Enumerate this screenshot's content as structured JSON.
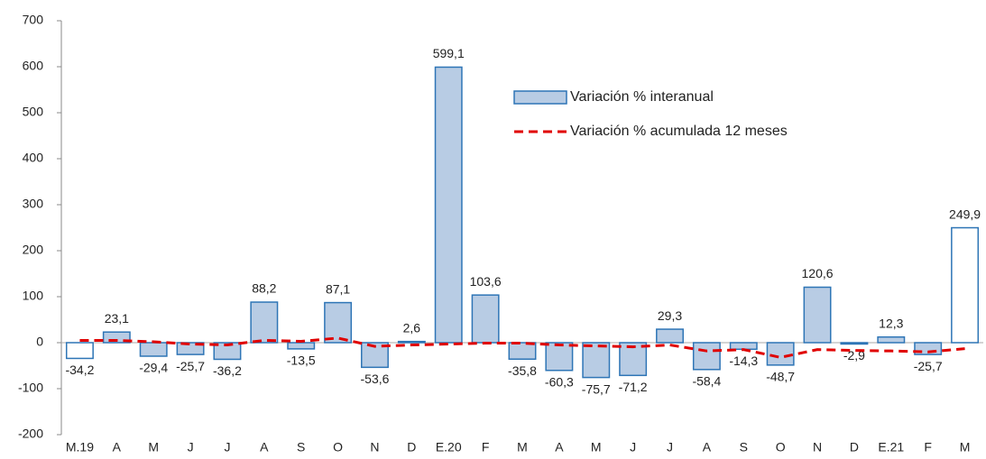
{
  "chart_data": {
    "type": "bar",
    "categories": [
      "M.19",
      "A",
      "M",
      "J",
      "J",
      "A",
      "S",
      "O",
      "N",
      "D",
      "E.20",
      "F",
      "M",
      "A",
      "M",
      "J",
      "J",
      "A",
      "S",
      "O",
      "N",
      "D",
      "E.21",
      "F",
      "M"
    ],
    "series": [
      {
        "name": "Variación % interanual",
        "type": "bar",
        "color": "#b8cce4",
        "edge_color": "#2e75b6",
        "colors": [
          "#ffffff",
          "#b8cce4",
          "#b8cce4",
          "#b8cce4",
          "#b8cce4",
          "#b8cce4",
          "#b8cce4",
          "#b8cce4",
          "#b8cce4",
          "#b8cce4",
          "#b8cce4",
          "#b8cce4",
          "#b8cce4",
          "#b8cce4",
          "#b8cce4",
          "#b8cce4",
          "#b8cce4",
          "#b8cce4",
          "#b8cce4",
          "#b8cce4",
          "#b8cce4",
          "#b8cce4",
          "#b8cce4",
          "#b8cce4",
          "#ffffff"
        ],
        "values": [
          -34.2,
          23.1,
          -29.4,
          -25.7,
          -36.2,
          88.2,
          -13.5,
          87.1,
          -53.6,
          2.6,
          599.1,
          103.6,
          -35.8,
          -60.3,
          -75.7,
          -71.2,
          29.3,
          -58.4,
          -14.3,
          -48.7,
          120.6,
          -2.9,
          12.3,
          -25.7,
          249.9
        ],
        "value_labels": [
          "-34,2",
          "23,1",
          "-29,4",
          "-25,7",
          "-36,2",
          "88,2",
          "-13,5",
          "87,1",
          "-53,6",
          "2,6",
          "599,1",
          "103,6",
          "-35,8",
          "-60,3",
          "-75,7",
          "-71,2",
          "29,3",
          "-58,4",
          "-14,3",
          "-48,7",
          "120,6",
          "-2,9",
          "12,3",
          "-25,7",
          "249,9"
        ]
      },
      {
        "name": "Variación % acumulada 12 meses",
        "type": "line",
        "color": "#e00000",
        "dashed": true,
        "values": [
          5,
          5,
          2,
          -3,
          -5,
          5,
          3,
          10,
          -8,
          -5,
          -3,
          -1,
          -1,
          -5,
          -7,
          -9,
          -5,
          -18,
          -15,
          -32,
          -15,
          -17,
          -18,
          -20,
          -13
        ]
      }
    ],
    "ylim": [
      -200,
      700
    ],
    "yticks": [
      -200,
      -100,
      0,
      100,
      200,
      300,
      400,
      500,
      600,
      700
    ],
    "legend": "upper-right"
  }
}
